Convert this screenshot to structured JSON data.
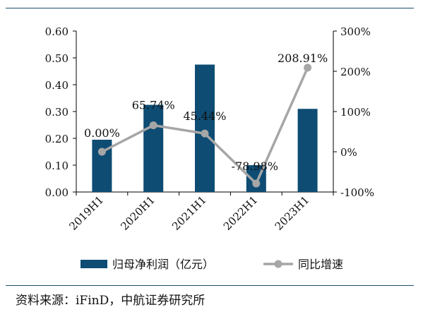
{
  "source_note": "资料来源：iFinD，中航证券研究所",
  "colors": {
    "bar": "#0e4c73",
    "line": "#a6a6a6",
    "rule": "#1e4f6e",
    "axis": "#000000"
  },
  "chart_data": {
    "type": "bar+line",
    "categories": [
      "2019H1",
      "2020H1",
      "2021H1",
      "2022H1",
      "2023H1"
    ],
    "series": [
      {
        "name": "归母净利润（亿元）",
        "type": "bar",
        "axis": "left",
        "values": [
          0.195,
          0.325,
          0.475,
          0.1,
          0.31
        ]
      },
      {
        "name": "同比增速",
        "type": "line",
        "axis": "right",
        "values": [
          0.0,
          65.74,
          45.44,
          -78.98,
          208.91
        ],
        "labels": [
          "0.00%",
          "65.74%",
          "45.44%",
          "-78.98%",
          "208.91%"
        ]
      }
    ],
    "y_left": {
      "ylim": [
        0,
        0.6
      ],
      "ticks": [
        "0.00",
        "0.10",
        "0.20",
        "0.30",
        "0.40",
        "0.50",
        "0.60"
      ]
    },
    "y_right": {
      "ylim": [
        -100,
        300
      ],
      "ticks": [
        "-100%",
        "0%",
        "100%",
        "200%",
        "300%"
      ]
    },
    "grid": false,
    "legend_position": "bottom"
  }
}
